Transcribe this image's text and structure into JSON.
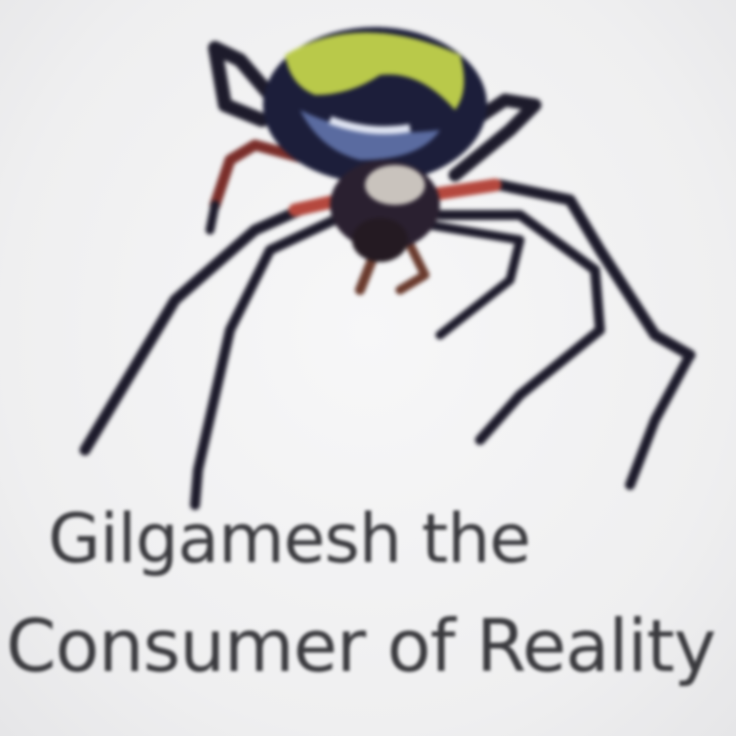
{
  "image": {
    "subject_icon": "spider-icon",
    "caption": {
      "line1": "Gilgamesh the",
      "line2": "Consumer of Reality"
    }
  },
  "colors": {
    "background": "#f3f3f4",
    "text": "#3a3a3e",
    "abdomen_dark": "#1c1e3a",
    "abdomen_green": "#b9c94a",
    "legs_dark": "#1d1b2b",
    "legs_red": "#b5483e"
  }
}
